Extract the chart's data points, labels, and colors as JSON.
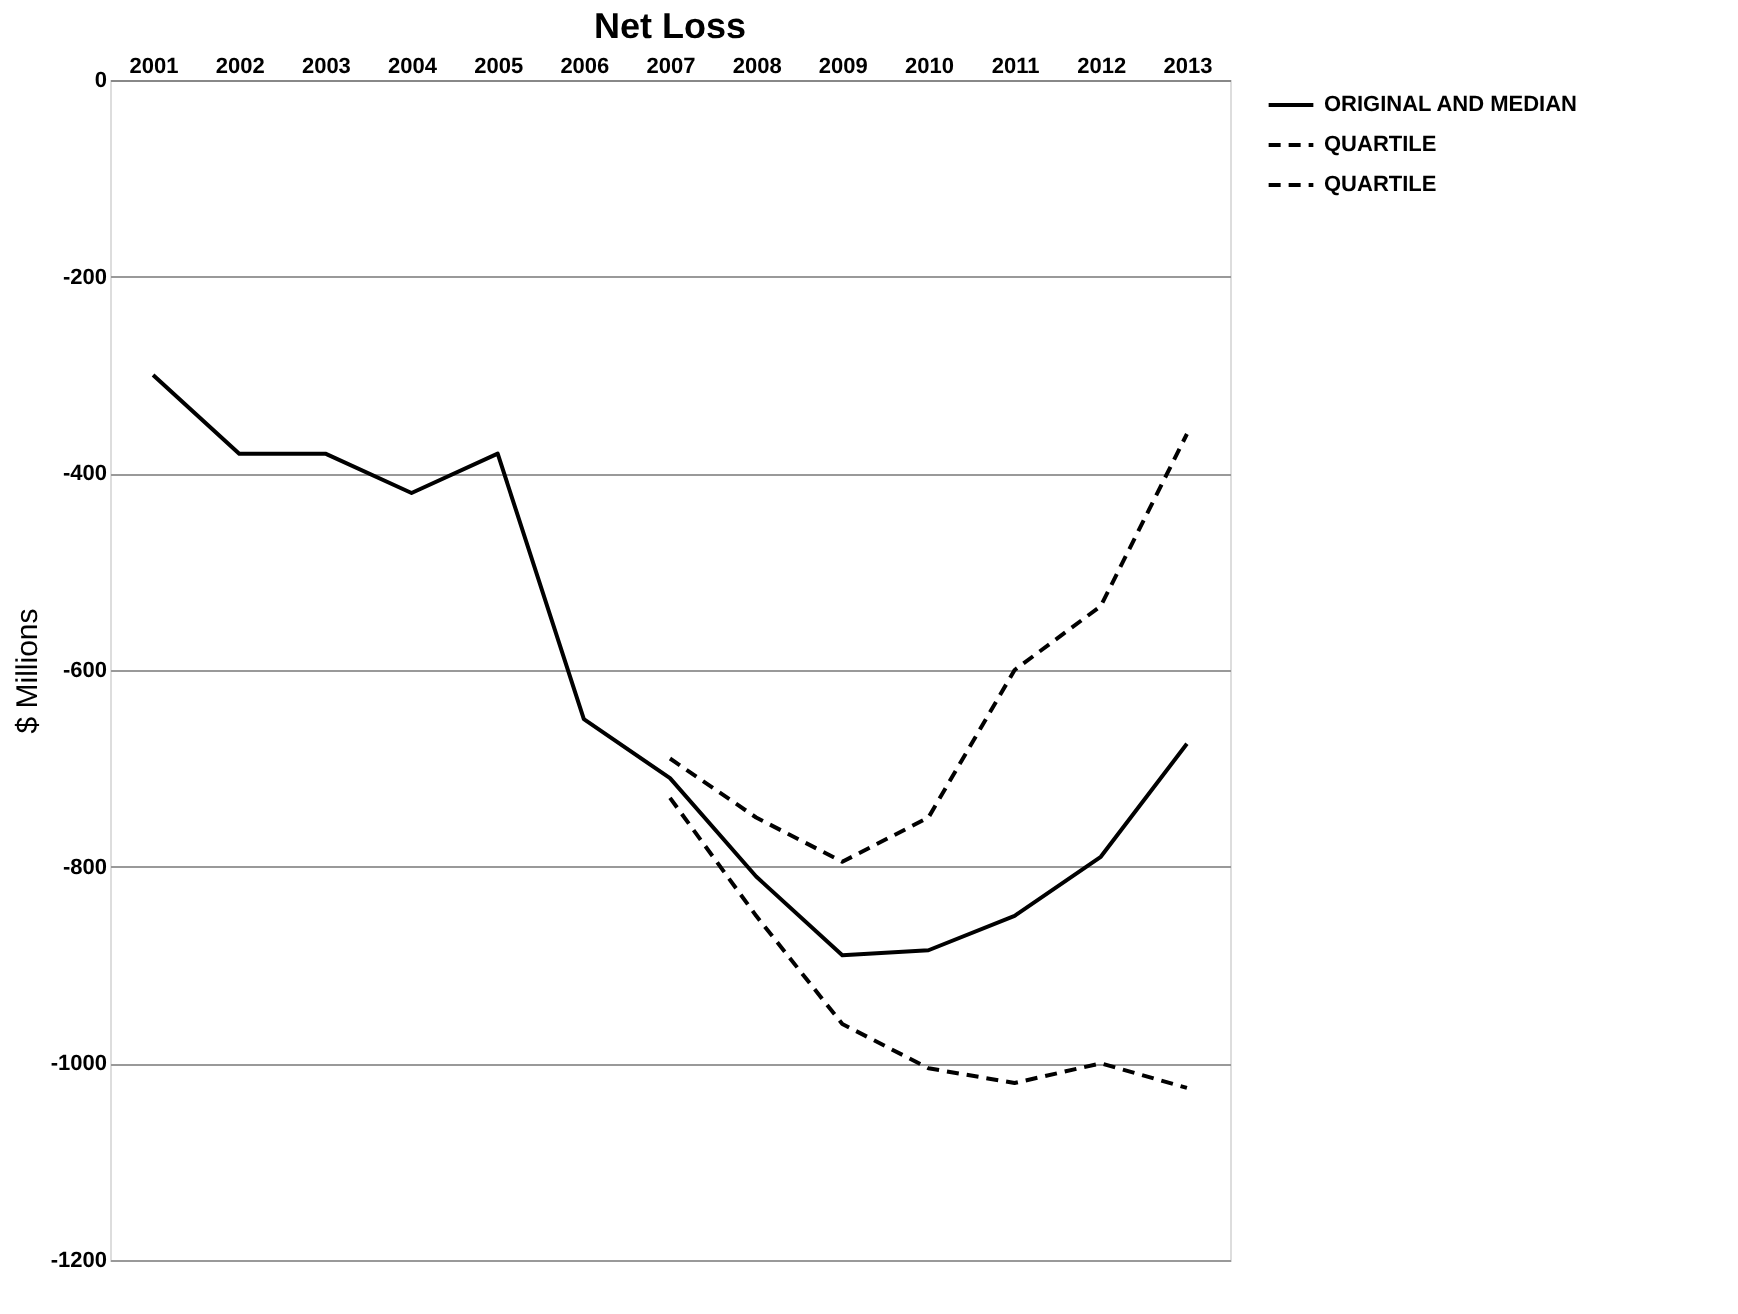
{
  "chart_data": {
    "type": "line",
    "title": "Net Loss",
    "ylabel": "$ Millions",
    "categories": [
      "2001",
      "2002",
      "2003",
      "2004",
      "2005",
      "2006",
      "2007",
      "2008",
      "2009",
      "2010",
      "2011",
      "2012",
      "2013"
    ],
    "series": [
      {
        "name": "ORIGINAL AND MEDIAN",
        "color": "#000000",
        "line_style": "solid",
        "values": [
          -300,
          -380,
          -380,
          -420,
          -380,
          -650,
          -710,
          -810,
          -890,
          -885,
          -850,
          -790,
          -675
        ]
      },
      {
        "name": "QUARTILE",
        "color": "#000000",
        "line_style": "dashed",
        "values": [
          null,
          null,
          null,
          null,
          null,
          null,
          -690,
          -750,
          -795,
          -750,
          -600,
          -535,
          -360
        ]
      },
      {
        "name": "QUARTILE",
        "color": "#000000",
        "line_style": "dashed",
        "values": [
          null,
          null,
          null,
          null,
          null,
          null,
          -730,
          -850,
          -960,
          -1005,
          -1020,
          -1000,
          -1025
        ]
      }
    ],
    "ylim": [
      -1200,
      0
    ],
    "yticks": [
      -1200,
      -1000,
      -800,
      -600,
      -400,
      -200,
      0
    ],
    "grid": "y",
    "legend": "right",
    "marker": "none"
  }
}
